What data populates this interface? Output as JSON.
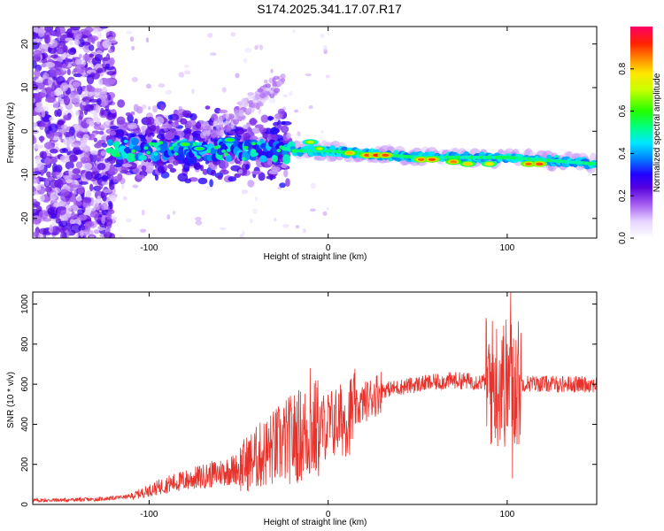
{
  "title": "S174.2025.341.17.07.R17",
  "chart_data": [
    {
      "type": "heatmap",
      "name": "spectrogram",
      "xlabel": "Height of straight line (km)",
      "ylabel": "Frequency (Hz)",
      "xlim": [
        -165,
        150
      ],
      "ylim": [
        -24.5,
        24
      ],
      "xticks": [
        -100,
        0,
        100
      ],
      "yticks": [
        -20,
        -10,
        0,
        10,
        20
      ],
      "colorbar": {
        "label": "Normalized spectral amplitude",
        "range": [
          0,
          1
        ],
        "ticks": [
          "0.0",
          "0.2",
          "0.4",
          "0.6",
          "0.8"
        ],
        "tick_values": [
          0,
          0.2,
          0.4,
          0.6,
          0.8
        ]
      },
      "signal_band": {
        "description_points": [
          {
            "x": -120,
            "y": -4
          },
          {
            "x": -30,
            "y": -4.5
          },
          {
            "x": 0,
            "y": -4.5
          },
          {
            "x": 50,
            "y": -6
          },
          {
            "x": 100,
            "y": -6
          },
          {
            "x": 150,
            "y": -7.5
          }
        ]
      }
    },
    {
      "type": "line",
      "name": "snr",
      "xlabel": "Height of straight line (km)",
      "ylabel": "SNR (10 * v/v)",
      "xlim": [
        -165,
        150
      ],
      "ylim": [
        0,
        1060
      ],
      "xticks": [
        -100,
        0,
        100
      ],
      "yticks": [
        0,
        200,
        400,
        600,
        800,
        1000
      ],
      "color": "#e8332c",
      "trend": [
        {
          "x": -165,
          "y": 20
        },
        {
          "x": -130,
          "y": 25
        },
        {
          "x": -110,
          "y": 40
        },
        {
          "x": -90,
          "y": 100
        },
        {
          "x": -70,
          "y": 140
        },
        {
          "x": -50,
          "y": 180
        },
        {
          "x": -35,
          "y": 260
        },
        {
          "x": -20,
          "y": 330
        },
        {
          "x": -5,
          "y": 380
        },
        {
          "x": 10,
          "y": 430
        },
        {
          "x": 20,
          "y": 510
        },
        {
          "x": 30,
          "y": 570
        },
        {
          "x": 50,
          "y": 600
        },
        {
          "x": 70,
          "y": 620
        },
        {
          "x": 90,
          "y": 610
        },
        {
          "x": 110,
          "y": 605
        },
        {
          "x": 130,
          "y": 600
        },
        {
          "x": 150,
          "y": 600
        }
      ],
      "peaks": [
        {
          "x": -10,
          "y": 680
        },
        {
          "x": 97,
          "y": 820
        },
        {
          "x": 102,
          "y": 1060
        },
        {
          "x": 103,
          "y": 130
        }
      ]
    }
  ]
}
